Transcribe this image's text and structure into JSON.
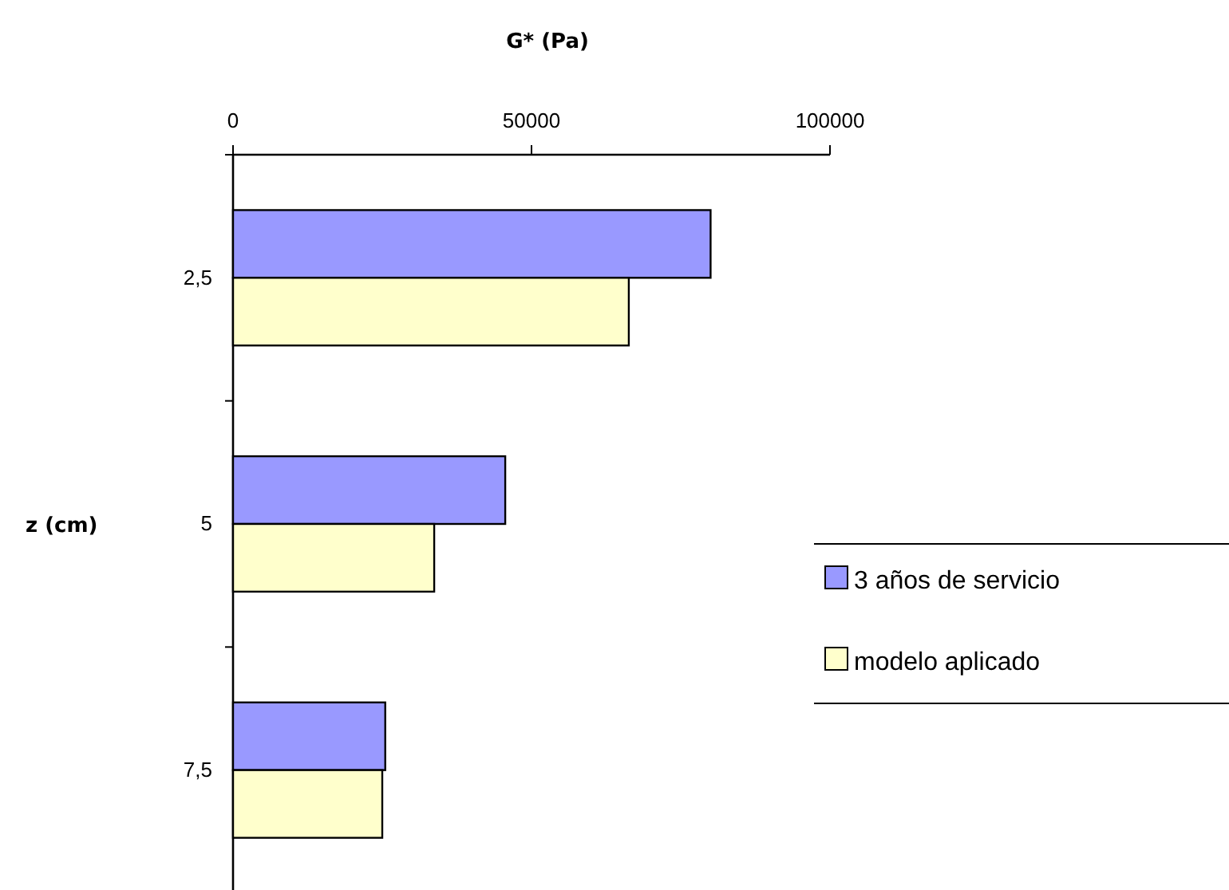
{
  "chart_data": {
    "type": "bar",
    "orientation": "horizontal",
    "xlabel": "G* (Pa)",
    "ylabel": "z (cm)",
    "categories": [
      "2,5",
      "5",
      "7,5"
    ],
    "series": [
      {
        "name": "3 años de servicio",
        "color": "#9999ff",
        "values": [
          80000,
          45600,
          25500
        ]
      },
      {
        "name": "modelo aplicado",
        "color": "#ffffcc",
        "values": [
          66300,
          33700,
          25000
        ]
      }
    ],
    "xlim": [
      0,
      100000
    ],
    "xticks": [
      0,
      50000,
      100000
    ],
    "grid": false,
    "legend": "right"
  }
}
